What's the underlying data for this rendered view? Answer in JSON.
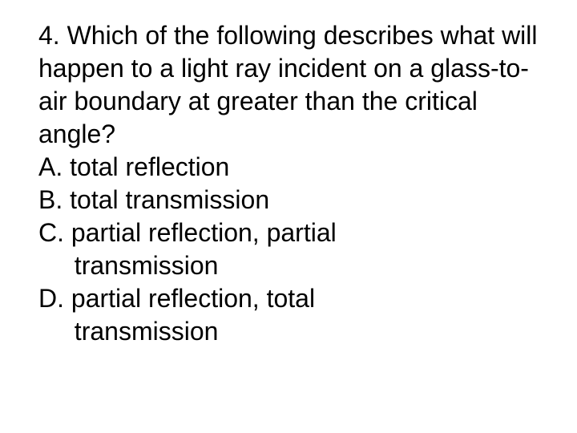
{
  "question": {
    "number": "4.",
    "text": "Which of the following describes what will happen to a light ray incident on a glass-to-air boundary at greater than the critical angle?",
    "fontsize": 32,
    "color": "#000000",
    "background_color": "#ffffff",
    "choices": [
      {
        "label": "A.",
        "text": "total reflection",
        "continuation": ""
      },
      {
        "label": "B.",
        "text": "total transmission",
        "continuation": ""
      },
      {
        "label": "C.",
        "text": "partial reflection, partial",
        "continuation": "transmission"
      },
      {
        "label": "D.",
        "text": "partial reflection, total",
        "continuation": "transmission"
      }
    ]
  }
}
